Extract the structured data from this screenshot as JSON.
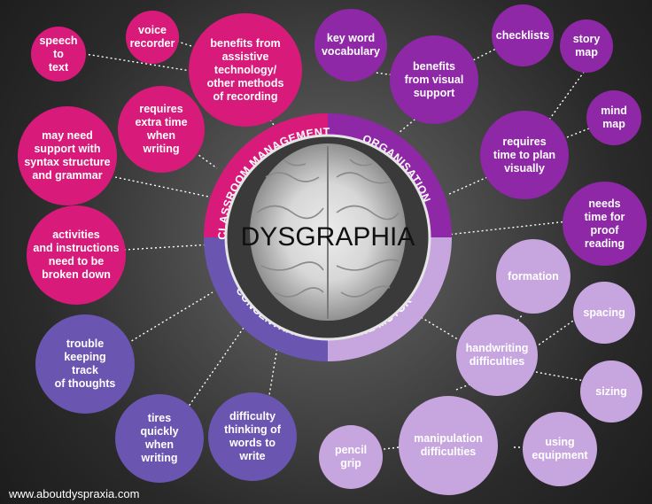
{
  "center": {
    "title": "DYSGRAPHIA"
  },
  "sectors": [
    {
      "id": "classroom",
      "label": "CLASSROOM MANAGEMENT",
      "color": "#d81b7a"
    },
    {
      "id": "organisation",
      "label": "ORGANISATION",
      "color": "#8e28a6"
    },
    {
      "id": "concentration",
      "label": "CONCENTRATION",
      "color": "#6a55b0"
    },
    {
      "id": "finemotor",
      "label": "FINE MOTOR",
      "color": "#c7a6df"
    }
  ],
  "bubbles": {
    "speech_to_text": "speech\nto\ntext",
    "voice_recorder": "voice\nrecorder",
    "benefits_assistive": "benefits from\nassistive\ntechnology/\nother methods\nof recording",
    "syntax_support": "may need\nsupport with\nsyntax structure\nand grammar",
    "extra_time": "requires\nextra time\nwhen\nwriting",
    "broken_down": "activities\nand instructions\nneed to be\nbroken down",
    "key_word": "key word\nvocabulary",
    "checklists": "checklists",
    "visual_support": "benefits\nfrom visual\nsupport",
    "story_map": "story\nmap",
    "mind_map": "mind\nmap",
    "time_to_plan": "requires\ntime to plan\nvisually",
    "proof_reading": "needs\ntime for\nproof\nreading",
    "trouble_tracking": "trouble\nkeeping\ntrack\nof thoughts",
    "tires_quickly": "tires\nquickly\nwhen\nwriting",
    "difficulty_thinking": "difficulty\nthinking of\nwords to\nwrite",
    "formation": "formation",
    "spacing": "spacing",
    "handwriting": "handwriting\ndifficulties",
    "sizing": "sizing",
    "pencil_grip": "pencil\ngrip",
    "manipulation": "manipulation\ndifficulties",
    "using_equipment": "using\nequipment"
  },
  "footer": {
    "url": "www.aboutdyspraxia.com"
  },
  "colors": {
    "classroom": "#d81b7a",
    "organisation": "#8e28a6",
    "concentration": "#6a55b0",
    "finemotor": "#c7a6df"
  }
}
